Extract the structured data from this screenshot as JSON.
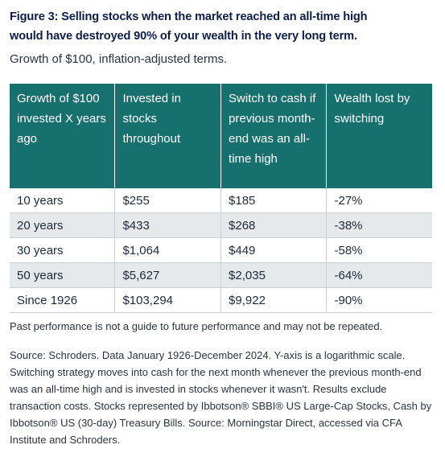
{
  "header": {
    "title_lines": [
      "Figure 3: Selling stocks when the market reached an all-time high",
      "would have destroyed 90% of your wealth in the very long term."
    ],
    "subtitle": "Growth of $100, inflation-adjusted terms."
  },
  "table": {
    "columns": [
      "Growth of $100 invested X years ago",
      "Invested in stocks throughout",
      "Switch to cash if previous month-end was an all-time high",
      "Wealth lost by switching"
    ],
    "rows": [
      [
        "10 years",
        "$255",
        "$185",
        "-27%"
      ],
      [
        "20 years",
        "$433",
        "$268",
        "-38%"
      ],
      [
        "30 years",
        "$1,064",
        "$449",
        "-58%"
      ],
      [
        "50 years",
        "$5,627",
        "$2,035",
        "-64%"
      ],
      [
        "Since 1926",
        "$103,294",
        "$9,922",
        "-90%"
      ]
    ]
  },
  "footer": {
    "disclaimer": "Past performance is not a guide to future performance and may not be repeated.",
    "source": "Source: Schroders. Data January 1926-December 2024. Y-axis is a logarithmic scale. Switching strategy moves into cash for the next month whenever the previous month-end was an all-time high and is invested in stocks whenever it wasn't. Results exclude transaction costs. Stocks represented by Ibbotson® SBBI® US Large-Cap Stocks, Cash by Ibbotson® US (30-day) Treasury Bills. Source: Morningstar Direct, accessed via CFA Institute and Schroders."
  }
}
